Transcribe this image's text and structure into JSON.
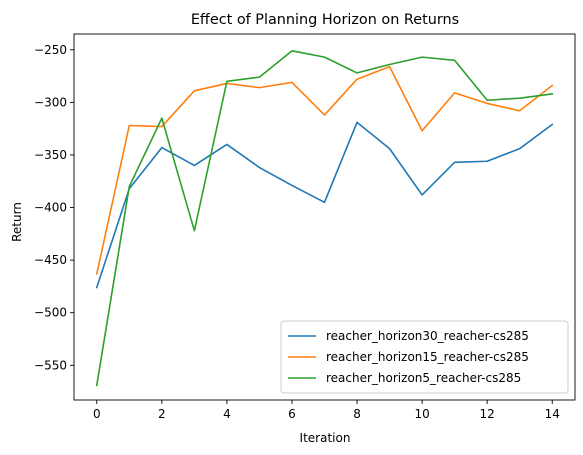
{
  "chart_data": {
    "type": "line",
    "title": "Effect of Planning Horizon on Returns",
    "xlabel": "Iteration",
    "ylabel": "Return",
    "xlim": [
      -0.7,
      14.7
    ],
    "ylim": [
      -583,
      -235
    ],
    "xticks": [
      0,
      2,
      4,
      6,
      8,
      10,
      12,
      14
    ],
    "yticks": [
      -550,
      -500,
      -450,
      -400,
      -350,
      -300,
      -250
    ],
    "xtick_labels": [
      "0",
      "2",
      "4",
      "6",
      "8",
      "10",
      "12",
      "14"
    ],
    "ytick_labels": [
      "−550",
      "−500",
      "−450",
      "−400",
      "−350",
      "−300",
      "−250"
    ],
    "grid": false,
    "legend_position": "lower right",
    "x": [
      0,
      1,
      2,
      3,
      4,
      5,
      6,
      7,
      8,
      9,
      10,
      11,
      12,
      13,
      14
    ],
    "series": [
      {
        "name": "reacher_horizon30_reacher-cs285",
        "color": "#1f77b4",
        "values": [
          -476,
          -382,
          -343,
          -360,
          -340,
          -362,
          -379,
          -395,
          -319,
          -344,
          -388,
          -357,
          -356,
          -344,
          -321
        ]
      },
      {
        "name": "reacher_horizon15_reacher-cs285",
        "color": "#ff7f0e",
        "values": [
          -463,
          -322,
          -323,
          -289,
          -282,
          -286,
          -281,
          -312,
          -278,
          -266,
          -327,
          -291,
          -301,
          -308,
          -284
        ]
      },
      {
        "name": "reacher_horizon5_reacher-cs285",
        "color": "#2ca02c",
        "values": [
          -569,
          -380,
          -315,
          -422,
          -280,
          -276,
          -251,
          -257,
          -272,
          -264,
          -257,
          -260,
          -298,
          -296,
          -292
        ]
      }
    ]
  }
}
